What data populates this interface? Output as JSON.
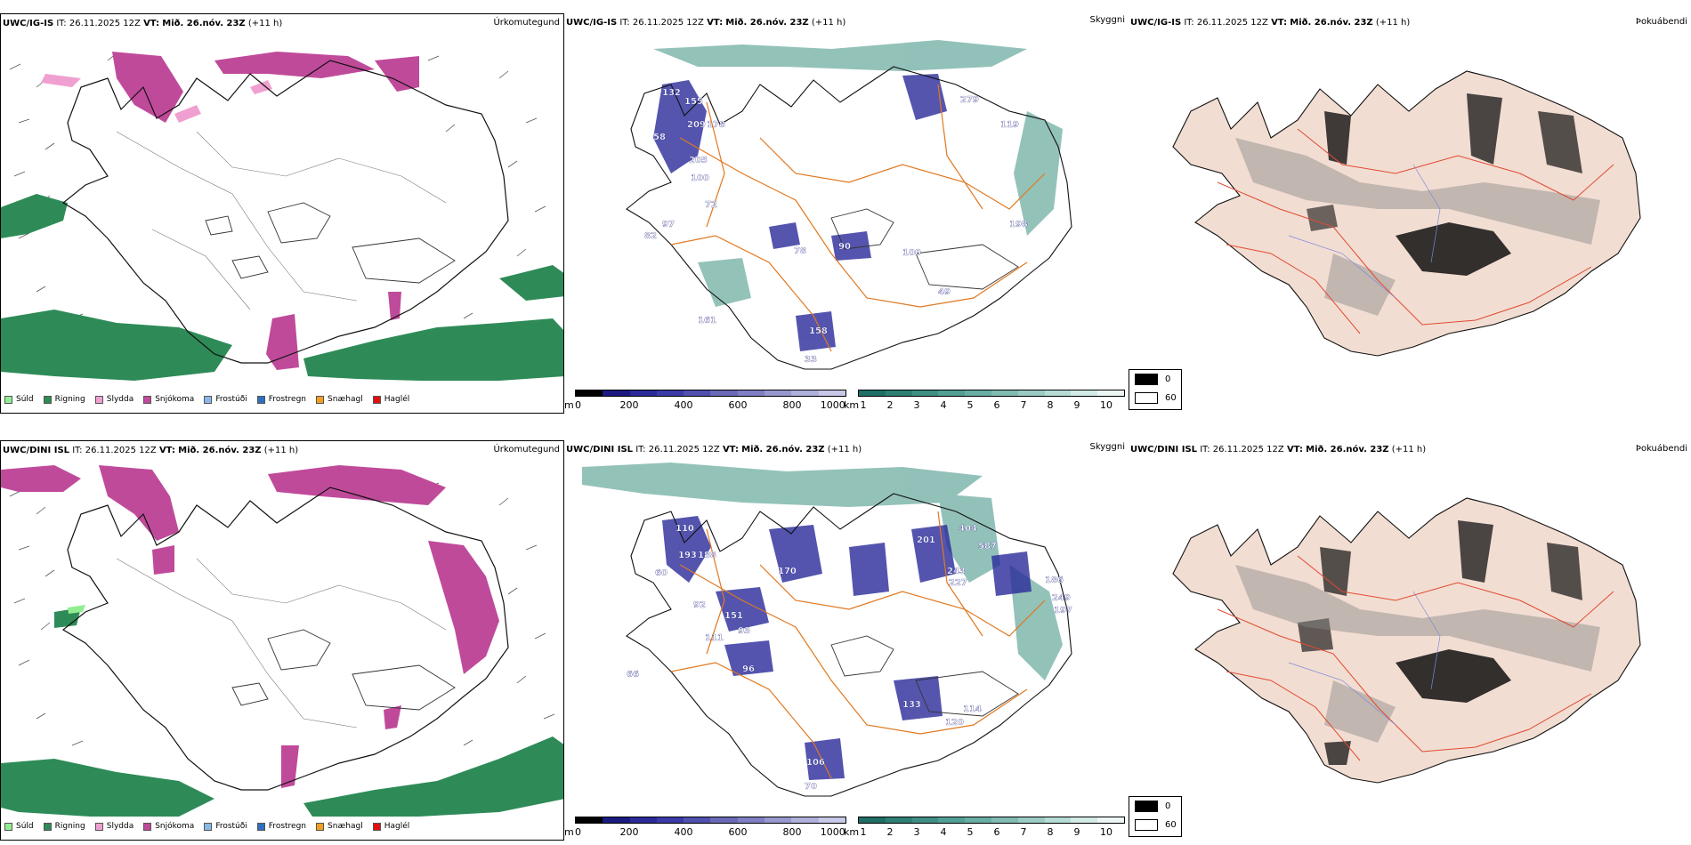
{
  "colors": {
    "sudd": "#90ee90",
    "rigning": "#2e8b57",
    "slydda": "#f0a0d0",
    "snjokoma": "#c04a9a",
    "frostudi": "#87b8e8",
    "frostregn": "#2f6fc0",
    "snaehagl": "#f0a020",
    "haglel": "#e01010",
    "roads": "#e07820",
    "visibility": "#3a8f80",
    "cloud": "#333333"
  },
  "rows": [
    {
      "precip": {
        "model": "UWC/IG-IS",
        "it_label": "IT:",
        "it": "26.11.2025 12Z",
        "vt_label": "VT:",
        "vt": "Mið. 26.nóv. 23Z",
        "lead": "(+11 h)",
        "title": "Úrkomutegund"
      },
      "vis": {
        "model": "UWC/IG-IS",
        "it_label": "IT:",
        "it": "26.11.2025 12Z",
        "vt_label": "VT:",
        "vt": "Mið. 26.nóv. 23Z",
        "lead": "(+11 h)",
        "title": "Skyggni"
      },
      "cloud": {
        "model": "UWC/IG-IS",
        "it_label": "IT:",
        "it": "26.11.2025 12Z",
        "vt_label": "VT:",
        "vt": "Mið. 26.nóv. 23Z",
        "lead": "(+11 h)",
        "title": "Þokuábendi"
      },
      "vis_labels": [
        "132",
        "155",
        "209",
        "178",
        "58",
        "205",
        "100",
        "72",
        "279",
        "119",
        "97",
        "82",
        "78",
        "90",
        "100",
        "198",
        "49",
        "158",
        "161",
        "33"
      ]
    },
    {
      "precip": {
        "model": "UWC/DINI ISL",
        "it_label": "IT:",
        "it": "26.11.2025 12Z",
        "vt_label": "VT:",
        "vt": "Mið. 26.nóv. 23Z",
        "lead": "(+11 h)",
        "title": "Úrkomutegund"
      },
      "vis": {
        "model": "UWC/DINI ISL",
        "it_label": "IT:",
        "it": "26.11.2025 12Z",
        "vt_label": "VT:",
        "vt": "Mið. 26.nóv. 23Z",
        "lead": "(+11 h)",
        "title": "Skyggni"
      },
      "cloud": {
        "model": "UWC/DINI ISL",
        "it_label": "IT:",
        "it": "26.11.2025 12Z",
        "vt_label": "VT:",
        "vt": "Mið. 26.nóv. 23Z",
        "lead": "(+11 h)",
        "title": "Þokuábendi"
      },
      "vis_labels": [
        "110",
        "193",
        "188",
        "60",
        "170",
        "404",
        "201",
        "587",
        "243",
        "227",
        "92",
        "151",
        "93",
        "111",
        "186",
        "249",
        "197",
        "66",
        "96",
        "133",
        "114",
        "120",
        "106",
        "70"
      ]
    }
  ],
  "precip_legend": [
    {
      "label": "Súld",
      "color": "#90ee90"
    },
    {
      "label": "Rigning",
      "color": "#2e8b57"
    },
    {
      "label": "Slydda",
      "color": "#f0a0d0"
    },
    {
      "label": "Snjókoma",
      "color": "#c04a9a"
    },
    {
      "label": "Frostúði",
      "color": "#87b8e8"
    },
    {
      "label": "Frostregn",
      "color": "#2f6fc0"
    },
    {
      "label": "Snæhagl",
      "color": "#f0a020"
    },
    {
      "label": "Haglél",
      "color": "#e01010"
    }
  ],
  "height_bar": {
    "unit": "m",
    "ticks": [
      "0",
      "200",
      "400",
      "600",
      "800",
      "1000"
    ],
    "colors": [
      "#000000",
      "#1a1a80",
      "#2a2a9a",
      "#3a3aa8",
      "#5050b0",
      "#6a6ab8",
      "#7f7fc4",
      "#9898d0",
      "#b0b0dc",
      "#c8c8e8"
    ]
  },
  "vis_bar": {
    "unit": "km",
    "ticks": [
      "1",
      "2",
      "3",
      "4",
      "5",
      "6",
      "7",
      "8",
      "9",
      "10"
    ],
    "colors": [
      "#1f6f66",
      "#2e8075",
      "#3f8f85",
      "#52a095",
      "#68aea4",
      "#80bcb3",
      "#9accc4",
      "#b6dcd6",
      "#d2ebe7",
      "#ecf7f5"
    ]
  },
  "cloud_legend": [
    {
      "label": "0",
      "color": "#000000"
    },
    {
      "label": "60",
      "color": "#ffffff"
    }
  ]
}
